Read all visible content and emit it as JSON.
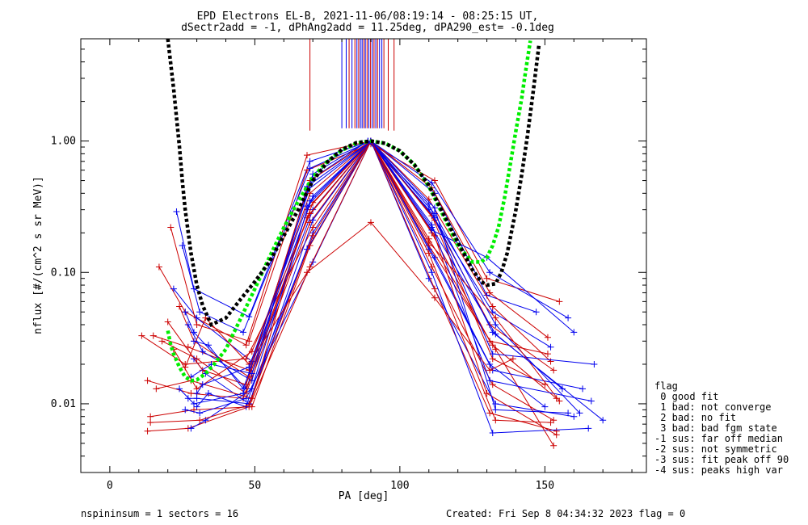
{
  "chart_data": {
    "type": "scatter",
    "title_line1": "EPD Electrons EL-B, 2021-11-06/08:19:14 - 08:25:15 UT,",
    "title_line2": "dSectr2add = -1, dPhAng2add = 11.25deg, dPA290_est=  -0.1deg",
    "xlabel": "PA [deg]",
    "ylabel": "nflux [#/(cm^2 s sr MeV)]",
    "xlim": [
      -10,
      185
    ],
    "ylim": [
      0.003,
      6.0
    ],
    "yscale": "log",
    "x_ticks": [
      0,
      50,
      100,
      150
    ],
    "x_tick_labels": [
      "0",
      "50",
      "100",
      "150"
    ],
    "y_ticks": [
      0.01,
      0.1,
      1.0
    ],
    "y_tick_labels": [
      "0.01",
      "0.10",
      "1.00"
    ],
    "colors": {
      "series_a": "#cc0000",
      "series_b": "#0000ee",
      "fit_black": "#000000",
      "fit_green": "#00ee00"
    },
    "footer_left": "nspininsum =  1  sectors = 16",
    "footer_right": "Created: Fri Sep  8 04:34:32 2023   flag = 0",
    "legend": {
      "title": "flag",
      "items": [
        " 0 good fit",
        " 1 bad: not converge",
        " 2 bad: no fit",
        " 3 bad: bad fgm state",
        "-1 sus: far off median",
        "-2 sus: not symmetric",
        "-3 sus: fit peak off 90",
        "-4 sus: peaks high var"
      ]
    },
    "fit_black": {
      "x": [
        20,
        22,
        24,
        25,
        26,
        28,
        30,
        32,
        35,
        40,
        45,
        50,
        55,
        60,
        65,
        70,
        75,
        80,
        85,
        90,
        95,
        100,
        105,
        110,
        115,
        120,
        125,
        128,
        130,
        133,
        135,
        137,
        138,
        140,
        142,
        144,
        146,
        148
      ],
      "y": [
        6.0,
        2.5,
        0.9,
        0.5,
        0.3,
        0.14,
        0.08,
        0.056,
        0.04,
        0.045,
        0.062,
        0.085,
        0.12,
        0.19,
        0.3,
        0.5,
        0.69,
        0.86,
        0.97,
        1.0,
        0.96,
        0.84,
        0.66,
        0.46,
        0.28,
        0.17,
        0.105,
        0.085,
        0.08,
        0.082,
        0.1,
        0.14,
        0.18,
        0.3,
        0.55,
        1.1,
        2.4,
        5.5
      ]
    },
    "fit_green": {
      "x": [
        20,
        21,
        22,
        24,
        26,
        28,
        30,
        33,
        36,
        40,
        45,
        50,
        55,
        60,
        65,
        70,
        75,
        80,
        85,
        90,
        95,
        100,
        105,
        110,
        115,
        120,
        125,
        128,
        130,
        132,
        134,
        136,
        138,
        140,
        142,
        143,
        144,
        145
      ],
      "y": [
        0.036,
        0.028,
        0.024,
        0.019,
        0.016,
        0.015,
        0.0152,
        0.017,
        0.02,
        0.026,
        0.044,
        0.075,
        0.13,
        0.22,
        0.35,
        0.53,
        0.7,
        0.85,
        0.96,
        1.0,
        0.96,
        0.84,
        0.66,
        0.45,
        0.27,
        0.16,
        0.12,
        0.12,
        0.13,
        0.16,
        0.22,
        0.36,
        0.65,
        1.2,
        2.1,
        3.0,
        4.2,
        5.8
      ]
    },
    "vertical_lines": [
      {
        "x": 69,
        "color": "#cc0000"
      },
      {
        "x": 80,
        "color": "#0000ee"
      },
      {
        "x": 81.5,
        "color": "#0000ee"
      },
      {
        "x": 82.5,
        "color": "#cc0000"
      },
      {
        "x": 83.5,
        "color": "#0000ee"
      },
      {
        "x": 84.5,
        "color": "#cc0000"
      },
      {
        "x": 85.2,
        "color": "#0000ee"
      },
      {
        "x": 85.8,
        "color": "#cc0000"
      },
      {
        "x": 86.4,
        "color": "#0000ee"
      },
      {
        "x": 87,
        "color": "#0000ee"
      },
      {
        "x": 87.6,
        "color": "#cc0000"
      },
      {
        "x": 88.1,
        "color": "#0000ee"
      },
      {
        "x": 88.7,
        "color": "#cc0000"
      },
      {
        "x": 89.3,
        "color": "#0000ee"
      },
      {
        "x": 89.9,
        "color": "#cc0000"
      },
      {
        "x": 90.5,
        "color": "#0000ee"
      },
      {
        "x": 91.1,
        "color": "#cc0000"
      },
      {
        "x": 91.7,
        "color": "#0000ee"
      },
      {
        "x": 92.3,
        "color": "#cc0000"
      },
      {
        "x": 93,
        "color": "#0000ee"
      },
      {
        "x": 93.8,
        "color": "#0000ee"
      },
      {
        "x": 94.5,
        "color": "#cc0000"
      },
      {
        "x": 96,
        "color": "#cc0000"
      },
      {
        "x": 98,
        "color": "#cc0000"
      }
    ],
    "series": [
      {
        "color": "#0000ee",
        "x": [
          23,
          29,
          48,
          69,
          90,
          112,
          130,
          147
        ],
        "y": [
          0.29,
          0.075,
          0.046,
          0.7,
          1.0,
          0.4,
          0.067,
          0.05
        ]
      },
      {
        "color": "#cc0000",
        "x": [
          17,
          26,
          47,
          68,
          90,
          111,
          131,
          151
        ],
        "y": [
          0.11,
          0.05,
          0.028,
          0.78,
          1.0,
          0.44,
          0.07,
          0.032
        ]
      },
      {
        "color": "#0000ee",
        "x": [
          22,
          30,
          49,
          70,
          89,
          110,
          132,
          152
        ],
        "y": [
          0.075,
          0.045,
          0.021,
          0.52,
          1.0,
          0.3,
          0.05,
          0.027
        ]
      },
      {
        "color": "#cc0000",
        "x": [
          15,
          27,
          48,
          69,
          90,
          112,
          131,
          153
        ],
        "y": [
          0.033,
          0.027,
          0.018,
          0.4,
          1.0,
          0.25,
          0.04,
          0.018
        ]
      },
      {
        "color": "#0000ee",
        "x": [
          26,
          29,
          47,
          70,
          90,
          111,
          133,
          156
        ],
        "y": [
          0.05,
          0.035,
          0.013,
          0.3,
          1.0,
          0.22,
          0.034,
          0.013
        ]
      },
      {
        "color": "#cc0000",
        "x": [
          13,
          28,
          46,
          68,
          90,
          110,
          132,
          154
        ],
        "y": [
          0.015,
          0.012,
          0.011,
          0.26,
          1.0,
          0.18,
          0.028,
          0.011
        ]
      },
      {
        "color": "#0000ee",
        "x": [
          27,
          30,
          48,
          70,
          90,
          112,
          131,
          150
        ],
        "y": [
          0.011,
          0.011,
          0.01,
          0.2,
          1.0,
          0.13,
          0.02,
          0.0095
        ]
      },
      {
        "color": "#cc0000",
        "x": [
          14,
          29,
          49,
          69,
          90,
          111,
          132,
          153
        ],
        "y": [
          0.008,
          0.009,
          0.0095,
          0.16,
          1.0,
          0.11,
          0.014,
          0.0075
        ]
      },
      {
        "color": "#0000ee",
        "x": [
          26,
          31,
          47,
          70,
          90,
          110,
          133,
          160
        ],
        "y": [
          0.009,
          0.0085,
          0.011,
          0.12,
          1.0,
          0.09,
          0.01,
          0.008
        ]
      },
      {
        "color": "#cc0000",
        "x": [
          13,
          27,
          48,
          69,
          90,
          112,
          131,
          154
        ],
        "y": [
          0.0062,
          0.0065,
          0.0095,
          0.11,
          1.0,
          0.075,
          0.0085,
          0.0062
        ]
      },
      {
        "color": "#0000ee",
        "x": [
          28,
          33,
          49,
          68,
          90,
          111,
          132,
          165
        ],
        "y": [
          0.0065,
          0.0075,
          0.013,
          0.15,
          1.0,
          0.1,
          0.006,
          0.0065
        ]
      },
      {
        "color": "#cc0000",
        "x": [
          11,
          26,
          47,
          70,
          90,
          110,
          133,
          153
        ],
        "y": [
          0.033,
          0.02,
          0.022,
          0.22,
          1.0,
          0.16,
          0.026,
          0.0048
        ]
      },
      {
        "color": "#cc0000",
        "x": [
          21,
          30,
          48,
          68,
          90,
          112,
          130,
          155
        ],
        "y": [
          0.22,
          0.04,
          0.03,
          0.6,
          0.95,
          0.5,
          0.09,
          0.06
        ]
      },
      {
        "color": "#0000ee",
        "x": [
          25,
          31,
          46,
          69,
          90,
          111,
          131,
          158
        ],
        "y": [
          0.16,
          0.05,
          0.035,
          0.62,
          1.0,
          0.48,
          0.1,
          0.045
        ]
      },
      {
        "color": "#cc0000",
        "x": [
          24,
          29,
          48,
          70,
          90,
          110,
          132,
          152
        ],
        "y": [
          0.055,
          0.03,
          0.016,
          0.34,
          1.0,
          0.36,
          0.055,
          0.021
        ]
      },
      {
        "color": "#0000ee",
        "x": [
          27,
          32,
          49,
          68,
          90,
          112,
          133,
          162
        ],
        "y": [
          0.04,
          0.025,
          0.015,
          0.45,
          1.0,
          0.28,
          0.04,
          0.0085
        ]
      },
      {
        "color": "#cc0000",
        "x": [
          18,
          30,
          47,
          69,
          90,
          111,
          131,
          151
        ],
        "y": [
          0.03,
          0.022,
          0.012,
          0.24,
          1.0,
          0.2,
          0.03,
          0.024
        ]
      },
      {
        "color": "#0000ee",
        "x": [
          29,
          33,
          48,
          70,
          90,
          110,
          132,
          163
        ],
        "y": [
          0.022,
          0.017,
          0.01,
          0.25,
          1.0,
          0.15,
          0.018,
          0.013
        ]
      },
      {
        "color": "#cc0000",
        "x": [
          16,
          28,
          49,
          68,
          90,
          112,
          130,
          154
        ],
        "y": [
          0.013,
          0.015,
          0.011,
          0.3,
          1.0,
          0.19,
          0.012,
          0.0058
        ]
      },
      {
        "color": "#0000ee",
        "x": [
          30,
          34,
          47,
          69,
          90,
          111,
          131,
          166
        ],
        "y": [
          0.0095,
          0.012,
          0.0095,
          0.35,
          1.0,
          0.23,
          0.015,
          0.0105
        ]
      },
      {
        "color": "#cc0000",
        "x": [
          14,
          31,
          48,
          70,
          90,
          110,
          133,
          152
        ],
        "y": [
          0.0072,
          0.0075,
          0.0098,
          0.19,
          1.0,
          0.14,
          0.0075,
          0.0072
        ]
      },
      {
        "color": "#0000ee",
        "x": [
          24,
          29,
          46,
          68,
          90,
          112,
          133,
          158
        ],
        "y": [
          0.013,
          0.01,
          0.012,
          0.42,
          1.0,
          0.31,
          0.009,
          0.0085
        ]
      },
      {
        "color": "#cc0000",
        "x": [
          20,
          32,
          47,
          69,
          90,
          111,
          132,
          150
        ],
        "y": [
          0.042,
          0.018,
          0.014,
          0.5,
          1.0,
          0.27,
          0.022,
          0.014
        ]
      },
      {
        "color": "#0000ee",
        "x": [
          28,
          35,
          49,
          70,
          89,
          110,
          132,
          167
        ],
        "y": [
          0.016,
          0.02,
          0.017,
          0.56,
          1.0,
          0.33,
          0.024,
          0.02
        ]
      },
      {
        "color": "#cc0000",
        "x": [
          26,
          33,
          48,
          68,
          90,
          112,
          131,
          139
        ],
        "y": [
          0.019,
          0.045,
          0.02,
          0.1,
          0.24,
          0.064,
          0.018,
          0.022
        ]
      },
      {
        "color": "#0000ee",
        "x": [
          29,
          34,
          46,
          70,
          90,
          111,
          130,
          160
        ],
        "y": [
          0.03,
          0.028,
          0.013,
          0.38,
          1.0,
          0.21,
          0.13,
          0.035
        ]
      },
      {
        "color": "#cc0000",
        "x": [
          22,
          30,
          49,
          69,
          90,
          110,
          133,
          155
        ],
        "y": [
          0.026,
          0.013,
          0.025,
          0.28,
          1.0,
          0.17,
          0.045,
          0.0105
        ]
      },
      {
        "color": "#0000ee",
        "x": [
          30,
          32,
          48,
          68,
          90,
          112,
          132,
          170
        ],
        "y": [
          0.012,
          0.014,
          0.019,
          0.32,
          1.0,
          0.26,
          0.035,
          0.0075
        ]
      }
    ]
  }
}
